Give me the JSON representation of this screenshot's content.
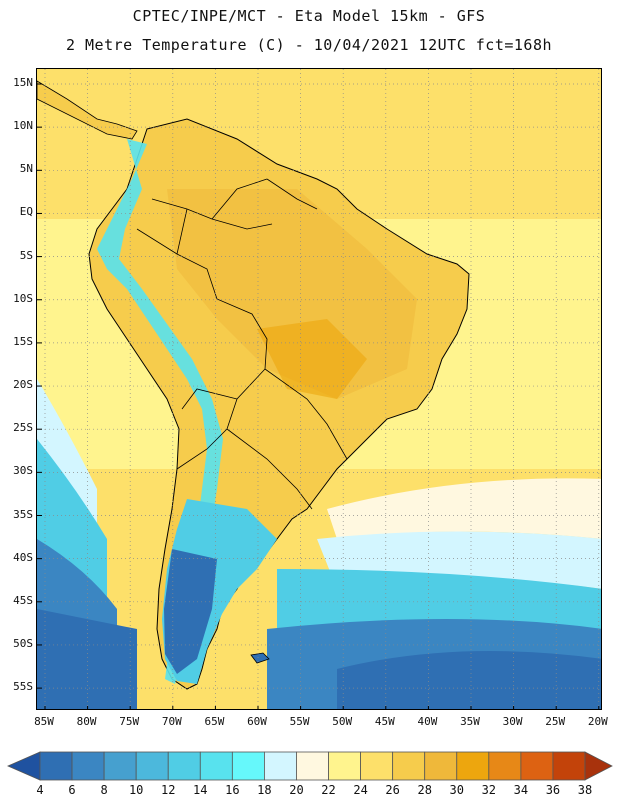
{
  "header": {
    "title_line1": "CPTEC/INPE/MCT  -  Eta Model 15km - GFS",
    "title_line2": "2 Metre Temperature (C) - 10/04/2021 12UTC fct=168h"
  },
  "axes": {
    "lat_labels": [
      "15N",
      "10N",
      "5N",
      "EQ",
      "5S",
      "10S",
      "15S",
      "20S",
      "25S",
      "30S",
      "35S",
      "40S",
      "45S",
      "50S",
      "55S"
    ],
    "lon_labels": [
      "85W",
      "80W",
      "75W",
      "70W",
      "65W",
      "60W",
      "55W",
      "50W",
      "45W",
      "40W",
      "35W",
      "30W",
      "25W",
      "20W"
    ]
  },
  "colorbar": {
    "labels": [
      "4",
      "6",
      "8",
      "10",
      "12",
      "14",
      "16",
      "18",
      "20",
      "22",
      "24",
      "26",
      "28",
      "30",
      "32",
      "34",
      "36",
      "38"
    ],
    "colors": [
      "#1f52a0",
      "#2f6fb3",
      "#3b86c2",
      "#46a0cf",
      "#4cb8dc",
      "#50cde5",
      "#58e2ee",
      "#66f8fb",
      "#d3f6ff",
      "#fff8e0",
      "#fff48e",
      "#fde06a",
      "#f6cc4c",
      "#efb83a",
      "#eda60e",
      "#e78817",
      "#dd6212",
      "#c3430a",
      "#a8320c"
    ]
  },
  "map": {
    "colors": {
      "ocean_warm": "#fde06a",
      "ocean_mild": "#fff48e",
      "ocean_cool": "#d3f6ff",
      "ocean_cold": "#50cde5",
      "ocean_colder": "#3b86c2",
      "ocean_coldest": "#2f6fb3",
      "land_hot": "#f6cc4c",
      "land_warm": "#fde06a",
      "andes": "#58e2ee",
      "patagonia": "#2f6fb3"
    }
  }
}
